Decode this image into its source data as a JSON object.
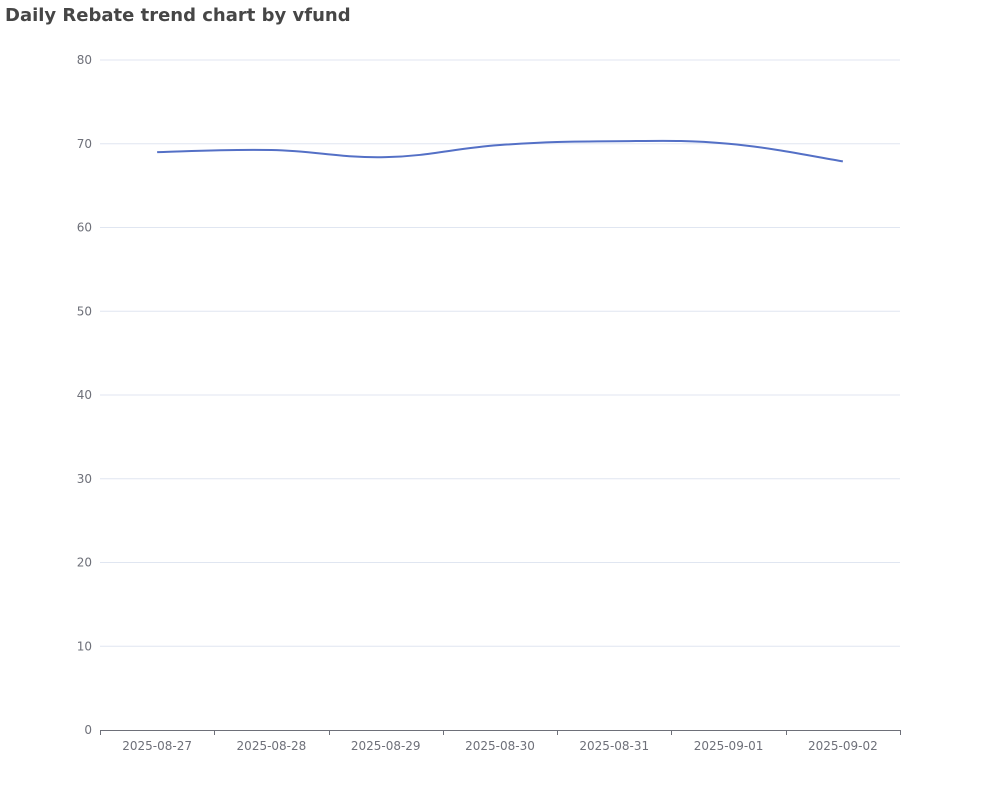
{
  "chart_data": {
    "type": "line",
    "title": "Daily Rebate trend chart by vfund",
    "categories": [
      "2025-08-27",
      "2025-08-28",
      "2025-08-29",
      "2025-08-30",
      "2025-08-31",
      "2025-09-01",
      "2025-09-02"
    ],
    "values": [
      69.0,
      69.25,
      68.4,
      69.85,
      70.3,
      70.0,
      67.9
    ],
    "color": "#5470c6",
    "smooth": true,
    "grid": true,
    "ylim": [
      0,
      80
    ],
    "yticks": [
      0,
      10,
      20,
      30,
      40,
      50,
      60,
      70,
      80
    ]
  }
}
